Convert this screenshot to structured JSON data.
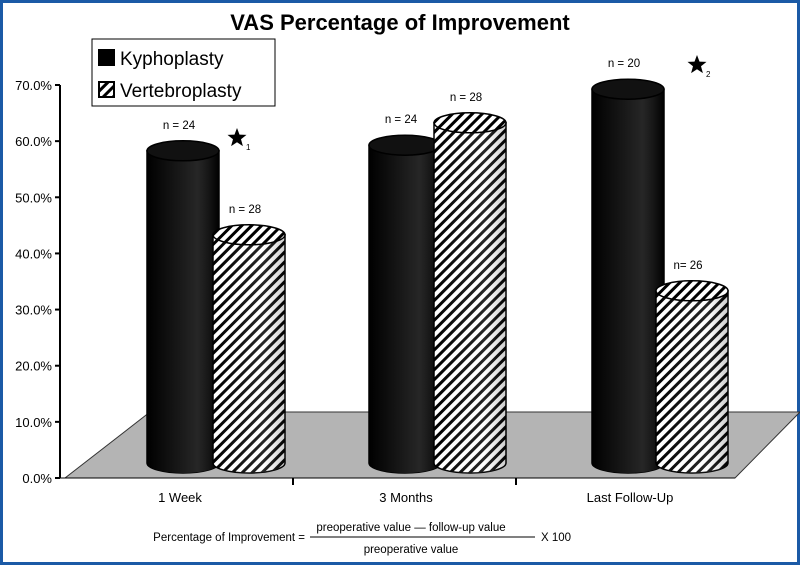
{
  "chart_data": {
    "type": "bar",
    "title": "VAS Percentage of Improvement",
    "xlabel": "",
    "ylabel": "",
    "ylim": [
      0,
      70
    ],
    "yticks": [
      "0.0%",
      "10.0%",
      "20.0%",
      "30.0%",
      "40.0%",
      "50.0%",
      "60.0%",
      "70.0%"
    ],
    "categories": [
      "1 Week",
      "3 Months",
      "Last Follow-Up"
    ],
    "legend_position": "top-left",
    "series": [
      {
        "name": "Kyphoplasty",
        "pattern": "solid",
        "color": "#000000",
        "values": [
          57,
          58,
          68
        ],
        "n_labels": [
          "n = 24",
          "n = 24",
          "n = 20"
        ]
      },
      {
        "name": "Vertebroplasty",
        "pattern": "hatched",
        "color": "#ffffff",
        "values": [
          42,
          62,
          32
        ],
        "n_labels": [
          "n = 28",
          "n = 28",
          "n= 26"
        ]
      }
    ],
    "annotations": [
      {
        "symbol": "star-icon",
        "subscript": "1",
        "category": "1 Week"
      },
      {
        "symbol": "star-icon",
        "subscript": "2",
        "category": "Last Follow-Up"
      }
    ],
    "formula": {
      "lhs": "Percentage of Improvement =",
      "numerator": "preoperative value — follow-up value",
      "denominator": "preoperative value",
      "multiplier": "X 100"
    }
  }
}
